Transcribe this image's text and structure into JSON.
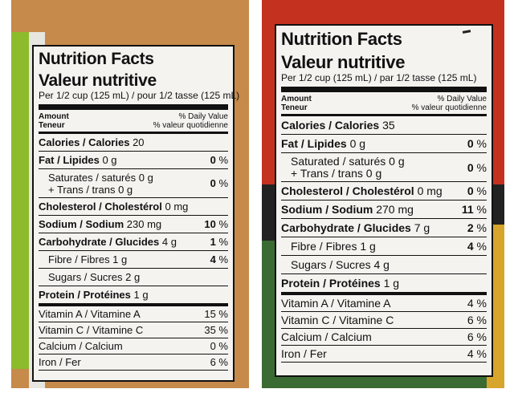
{
  "left": {
    "title_en": "Nutrition Facts",
    "title_fr": "Valeur nutritive",
    "serving": "Per 1/2 cup (125 mL) / pour 1/2 tasse (125 mL)",
    "amount": "Amount",
    "teneur": "Teneur",
    "dv": "% Daily Value",
    "dv_fr": "% valeur quotidienne",
    "calories_label": "Calories / Calories",
    "calories_value": "20",
    "fat_label": "Fat / Lipides",
    "fat_value": "0 g",
    "fat_pct": "0",
    "sat_label": "Saturates / saturés 0 g",
    "trans_label": "+ Trans / trans 0 g",
    "sat_pct": "0",
    "chol_label": "Cholesterol / Cholestérol",
    "chol_value": "0 mg",
    "sodium_label": "Sodium / Sodium",
    "sodium_value": "230 mg",
    "sodium_pct": "10",
    "carb_label": "Carbohydrate / Glucides",
    "carb_value": "4 g",
    "carb_pct": "1",
    "fibre_label": "Fibre / Fibres 1 g",
    "fibre_pct": "4",
    "sugars_label": "Sugars / Sucres 2 g",
    "protein_label": "Protein / Protéines",
    "protein_value": "1 g",
    "vit_a_label": "Vitamin A / Vitamine A",
    "vit_a_pct": "15 %",
    "vit_c_label": "Vitamin C / Vitamine C",
    "vit_c_pct": "35 %",
    "calcium_label": "Calcium / Calcium",
    "calcium_pct": "0 %",
    "iron_label": "Iron / Fer",
    "iron_pct": "6 %",
    "percent": "%"
  },
  "right": {
    "title_en": "Nutrition Facts",
    "title_fr": "Valeur nutritive",
    "serving": "Per 1/2 cup (125 mL) / par 1/2 tasse (125 mL)",
    "amount": "Amount",
    "teneur": "Teneur",
    "dv": "% Daily Value",
    "dv_fr": "% valeur quotidienne",
    "calories_label": "Calories / Calories",
    "calories_value": "35",
    "fat_label": "Fat / Lipides",
    "fat_value": "0 g",
    "fat_pct": "0",
    "sat_label": "Saturated / saturés 0 g",
    "trans_label": "+ Trans / trans 0 g",
    "sat_pct": "0",
    "chol_label": "Cholesterol / Cholestérol",
    "chol_value": "0 mg",
    "chol_pct": "0",
    "sodium_label": "Sodium / Sodium",
    "sodium_value": "270 mg",
    "sodium_pct": "11",
    "carb_label": "Carbohydrate / Glucides",
    "carb_value": "7 g",
    "carb_pct": "2",
    "fibre_label": "Fibre / Fibres 1 g",
    "fibre_pct": "4",
    "sugars_label": "Sugars / Sucres 4 g",
    "protein_label": "Protein / Protéines",
    "protein_value": "1 g",
    "vit_a_label": "Vitamin A / Vitamine A",
    "vit_a_pct": "4 %",
    "vit_c_label": "Vitamin C / Vitamine C",
    "vit_c_pct": "6 %",
    "calcium_label": "Calcium / Calcium",
    "calcium_pct": "6 %",
    "iron_label": "Iron / Fer",
    "iron_pct": "4 %",
    "percent": "%"
  },
  "colors": {
    "left_package_green": "#8cbc2c",
    "right_package_red": "#c4321f",
    "label_background": "#f4f3f0"
  }
}
